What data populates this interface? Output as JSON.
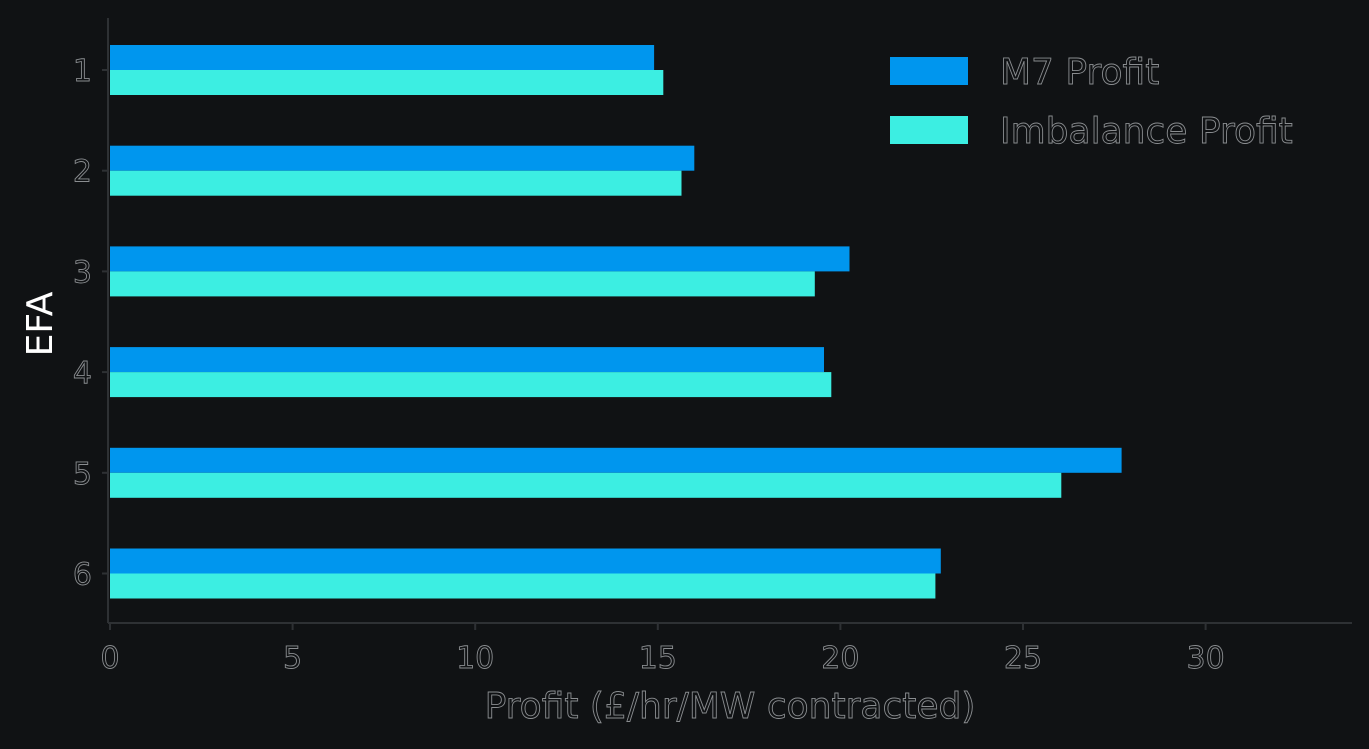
{
  "chart_data": {
    "type": "bar",
    "orientation": "horizontal",
    "categories": [
      "1",
      "2",
      "3",
      "4",
      "5",
      "6"
    ],
    "series": [
      {
        "name": "M7 Profit",
        "values": [
          14.9,
          16.0,
          20.25,
          19.55,
          27.7,
          22.75
        ]
      },
      {
        "name": "Imbalance Profit",
        "values": [
          15.15,
          15.65,
          19.3,
          19.75,
          26.05,
          22.6
        ]
      }
    ],
    "xlabel": "Profit (£/hr/MW contracted)",
    "ylabel": "EFA",
    "xlim": [
      0,
      34
    ],
    "xticks": [
      "0",
      "5",
      "10",
      "15",
      "20",
      "25",
      "30"
    ],
    "grid": false,
    "legend_position": "top-right",
    "colors": {
      "background": "#101214",
      "M7 Profit": "#0096ee",
      "Imbalance Profit": "#3ceee2",
      "axis": "#2e3134"
    }
  }
}
